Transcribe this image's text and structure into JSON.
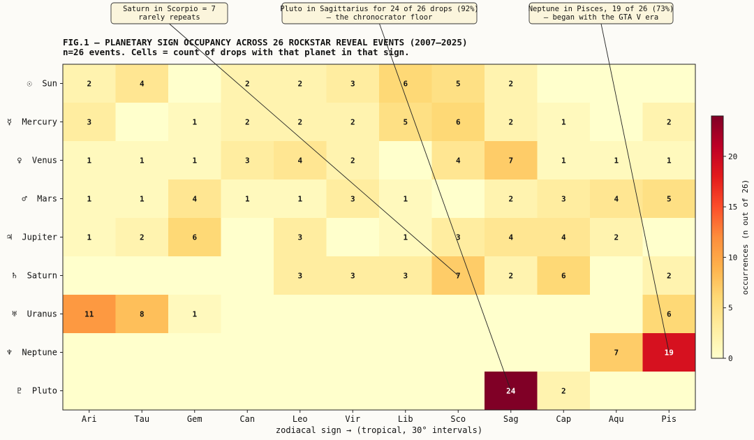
{
  "chart_data": {
    "type": "heatmap",
    "title": "FIG.1 — PLANETARY SIGN OCCUPANCY ACROSS 26 ROCKSTAR REVEAL EVENTS  (2007–2025)",
    "subtitle": "n=26 events. Cells = count of drops with that planet in that sign.",
    "xlabel": "zodiacal sign  →  (tropical, 30° intervals)",
    "x_categories": [
      "Ari",
      "Tau",
      "Gem",
      "Can",
      "Leo",
      "Vir",
      "Lib",
      "Sco",
      "Sag",
      "Cap",
      "Aqu",
      "Pis"
    ],
    "y_categories": [
      "☉  Sun",
      "☿  Mercury",
      "♀  Venus",
      "♂  Mars",
      "♃  Jupiter",
      "♄  Saturn",
      "♅  Uranus",
      "♆  Neptune",
      "♇  Pluto"
    ],
    "values": [
      [
        2,
        4,
        0,
        2,
        2,
        3,
        6,
        5,
        2,
        0,
        0,
        0
      ],
      [
        3,
        0,
        1,
        2,
        2,
        2,
        5,
        6,
        2,
        1,
        0,
        2
      ],
      [
        1,
        1,
        1,
        3,
        4,
        2,
        0,
        4,
        7,
        1,
        1,
        1
      ],
      [
        1,
        1,
        4,
        1,
        1,
        3,
        1,
        0,
        2,
        3,
        4,
        5
      ],
      [
        1,
        2,
        6,
        0,
        3,
        0,
        1,
        3,
        4,
        4,
        2,
        0
      ],
      [
        0,
        0,
        0,
        0,
        3,
        3,
        3,
        7,
        2,
        6,
        0,
        2
      ],
      [
        11,
        8,
        1,
        0,
        0,
        0,
        0,
        0,
        0,
        0,
        0,
        6
      ],
      [
        0,
        0,
        0,
        0,
        0,
        0,
        0,
        0,
        0,
        0,
        7,
        19
      ],
      [
        0,
        0,
        0,
        0,
        0,
        0,
        0,
        0,
        24,
        2,
        0,
        0
      ]
    ],
    "colorbar": {
      "label": "occurrences (n out of 26)",
      "range": [
        0,
        24
      ],
      "ticks": [
        0,
        5,
        10,
        15,
        20
      ],
      "colormap": "YlOrRd"
    },
    "annotations": [
      {
        "text": [
          "Saturn in Scorpio = 7",
          "rarely repeats"
        ],
        "planet_index": 5,
        "sign_index": 7
      },
      {
        "text": [
          "Pluto in Sagittarius for 24 of 26 drops (92%)",
          "— the chronocrator floor"
        ],
        "planet_index": 8,
        "sign_index": 8
      },
      {
        "text": [
          "Neptune in Pisces, 19 of 26 (73%)",
          "— began with the GTA V era"
        ],
        "planet_index": 7,
        "sign_index": 11
      }
    ]
  }
}
